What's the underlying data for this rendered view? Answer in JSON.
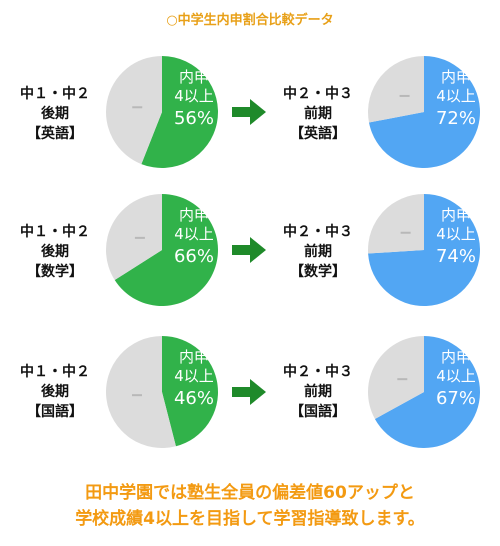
{
  "page": {
    "title": "○中学生内申割合比較データ",
    "footer_line1": "田中学園では塾生全員の偏差値60アップと",
    "footer_line2": "学校成績4以上を目指して学習指導致します。"
  },
  "colors": {
    "title": "#e8a018",
    "footer": "#f39a12",
    "before_fill": "#31b24a",
    "after_fill": "#52a6f3",
    "remainder": "#dcdcdc",
    "arrow": "#1f8a2a"
  },
  "rows": [
    {
      "before_label": [
        "中１・中２",
        "後期",
        "【英語】"
      ],
      "after_label": [
        "中２・中３",
        "前期",
        "【英語】"
      ],
      "before_pie": {
        "line1": "内申",
        "line2": "4以上",
        "value_text": "56%"
      },
      "after_pie": {
        "line1": "内申",
        "line2": "4以上",
        "value_text": "72%"
      }
    },
    {
      "before_label": [
        "中１・中２",
        "後期",
        "【数学】"
      ],
      "after_label": [
        "中２・中３",
        "前期",
        "【数学】"
      ],
      "before_pie": {
        "line1": "内申",
        "line2": "4以上",
        "value_text": "66%"
      },
      "after_pie": {
        "line1": "内申",
        "line2": "4以上",
        "value_text": "74%"
      }
    },
    {
      "before_label": [
        "中１・中２",
        "後期",
        "【国語】"
      ],
      "after_label": [
        "中２・中３",
        "前期",
        "【国語】"
      ],
      "before_pie": {
        "line1": "内申",
        "line2": "4以上",
        "value_text": "46%"
      },
      "after_pie": {
        "line1": "内申",
        "line2": "4以上",
        "value_text": "67%"
      }
    }
  ],
  "chart_data": [
    {
      "type": "pie",
      "categories": [
        "内申4以上",
        ""
      ],
      "values": [
        56,
        44
      ]
    },
    {
      "type": "pie",
      "categories": [
        "内申4以上",
        ""
      ],
      "values": [
        72,
        28
      ]
    },
    {
      "type": "pie",
      "categories": [
        "内申4以上",
        ""
      ],
      "values": [
        66,
        34
      ]
    },
    {
      "type": "pie",
      "categories": [
        "内申4以上",
        ""
      ],
      "values": [
        74,
        26
      ]
    },
    {
      "type": "pie",
      "categories": [
        "内申4以上",
        ""
      ],
      "values": [
        46,
        54
      ]
    },
    {
      "type": "pie",
      "categories": [
        "内申4以上",
        ""
      ],
      "values": [
        67,
        33
      ]
    }
  ]
}
